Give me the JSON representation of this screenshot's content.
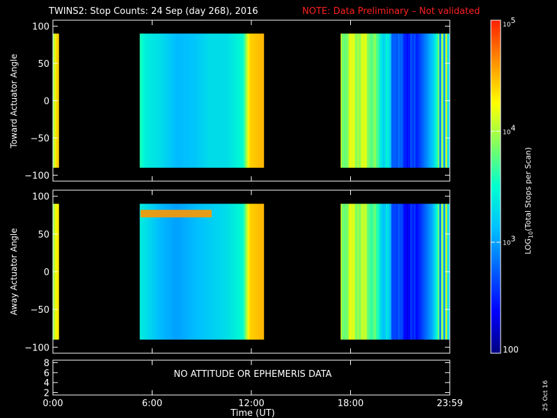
{
  "title": "TWINS2: Stop Counts: 24 Sep (day 268), 2016",
  "note": "NOTE: Data Preliminary – Not validated",
  "colors": {
    "background": "#000000",
    "foreground": "#ffffff",
    "note": "#ff2020",
    "colormap": [
      "#000080",
      "#0000ff",
      "#0060ff",
      "#00c0ff",
      "#00ffd0",
      "#80ff60",
      "#ffff00",
      "#ff9000",
      "#ff2000"
    ]
  },
  "chart_data": [
    {
      "type": "heatmap",
      "name": "toward",
      "ylabel": "Toward Actuator Angle",
      "ylim": [
        -108,
        108
      ],
      "yticks": [
        100,
        50,
        0,
        -50,
        -100
      ],
      "ytick_labels": [
        "100",
        "50",
        "0",
        "−50",
        "−100"
      ],
      "y_extent": [
        -90,
        90
      ],
      "xlim_hours": [
        0,
        24
      ],
      "coverage_hours": [
        [
          0.0,
          0.35
        ],
        [
          5.25,
          12.75
        ],
        [
          17.4,
          24.0
        ]
      ],
      "log10_counts_profile": [
        {
          "t": 0.0,
          "v": 3.8
        },
        {
          "t": 0.2,
          "v": 4.4
        },
        {
          "t": 0.35,
          "v": 4.4
        },
        {
          "t": 5.25,
          "v": 3.6
        },
        {
          "t": 5.6,
          "v": 3.4
        },
        {
          "t": 6.5,
          "v": 3.3
        },
        {
          "t": 7.5,
          "v": 3.1
        },
        {
          "t": 8.5,
          "v": 3.15
        },
        {
          "t": 9.5,
          "v": 3.3
        },
        {
          "t": 10.5,
          "v": 3.3
        },
        {
          "t": 11.5,
          "v": 3.5
        },
        {
          "t": 11.9,
          "v": 4.4
        },
        {
          "t": 12.75,
          "v": 4.5
        },
        {
          "t": 17.4,
          "v": 3.9
        },
        {
          "t": 18.0,
          "v": 4.1
        },
        {
          "t": 19.0,
          "v": 4.0
        },
        {
          "t": 20.0,
          "v": 3.4
        },
        {
          "t": 21.0,
          "v": 2.6
        },
        {
          "t": 22.0,
          "v": 2.5
        },
        {
          "t": 23.0,
          "v": 3.2
        },
        {
          "t": 23.5,
          "v": 4.0
        },
        {
          "t": 24.0,
          "v": 4.4
        }
      ]
    },
    {
      "type": "heatmap",
      "name": "away",
      "ylabel": "Away Actuator Angle",
      "ylim": [
        -108,
        108
      ],
      "yticks": [
        100,
        50,
        0,
        -50,
        -100
      ],
      "ytick_labels": [
        "100",
        "50",
        "0",
        "−50",
        "−100"
      ],
      "y_extent": [
        -90,
        90
      ],
      "xlim_hours": [
        0,
        24
      ],
      "coverage_hours": [
        [
          0.0,
          0.35
        ],
        [
          5.25,
          12.75
        ],
        [
          17.4,
          24.0
        ]
      ],
      "log10_counts_profile": [
        {
          "t": 0.0,
          "v": 3.8
        },
        {
          "t": 0.2,
          "v": 4.3
        },
        {
          "t": 0.35,
          "v": 4.3
        },
        {
          "t": 5.25,
          "v": 3.4
        },
        {
          "t": 6.5,
          "v": 3.1
        },
        {
          "t": 7.5,
          "v": 3.0
        },
        {
          "t": 8.5,
          "v": 3.1
        },
        {
          "t": 9.5,
          "v": 3.2
        },
        {
          "t": 10.5,
          "v": 3.3
        },
        {
          "t": 11.5,
          "v": 3.5
        },
        {
          "t": 11.9,
          "v": 4.4
        },
        {
          "t": 12.75,
          "v": 4.5
        },
        {
          "t": 17.4,
          "v": 3.9
        },
        {
          "t": 18.0,
          "v": 4.1
        },
        {
          "t": 19.0,
          "v": 3.9
        },
        {
          "t": 20.0,
          "v": 3.3
        },
        {
          "t": 21.0,
          "v": 2.5
        },
        {
          "t": 22.0,
          "v": 2.4
        },
        {
          "t": 23.0,
          "v": 3.1
        },
        {
          "t": 23.5,
          "v": 4.0
        },
        {
          "t": 24.0,
          "v": 4.4
        }
      ],
      "band": {
        "y_range": [
          72,
          82
        ],
        "t_range": [
          5.3,
          9.6
        ],
        "log10_counts": 4.6
      }
    },
    {
      "type": "line",
      "name": "attitude",
      "ylim": [
        1.5,
        8.5
      ],
      "yticks": [
        8,
        6,
        4,
        2
      ],
      "ytick_labels": [
        "8",
        "6",
        "4",
        "2"
      ],
      "message": "NO ATTITUDE OR EPHEMERIS DATA"
    }
  ],
  "x_axis": {
    "label": "Time (UT)",
    "ticks_hours": [
      0,
      6,
      12,
      18,
      24
    ],
    "tick_labels": [
      "0:00",
      "6:00",
      "12:00",
      "18:00",
      "23:59"
    ]
  },
  "colorbar": {
    "label_prefix": "LOG",
    "label_sub": "10",
    "label_rest": "(Total Stops per Scan)",
    "range_log10": [
      2,
      5
    ],
    "tick_labels": [
      "10",
      "5",
      "10",
      "4",
      "10",
      "3",
      "100"
    ],
    "ticks": [
      {
        "log10": 5,
        "base": "10",
        "exp": "5"
      },
      {
        "log10": 4,
        "base": "10",
        "exp": "4"
      },
      {
        "log10": 3,
        "base": "10",
        "exp": "3"
      },
      {
        "log10": 2,
        "label": "100"
      }
    ]
  },
  "footer_date": "25 Oct 16"
}
